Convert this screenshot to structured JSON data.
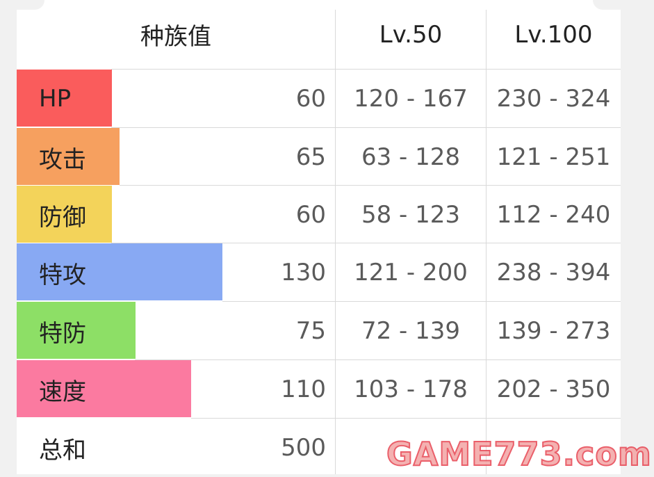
{
  "header": {
    "base_stat_label": "种族值",
    "lv50_label": "Lv.50",
    "lv100_label": "Lv.100"
  },
  "stats": [
    {
      "label": "HP",
      "base": "60",
      "lv50": "120 - 167",
      "lv100": "230 - 324",
      "color": "#fa5c5c",
      "value": 60
    },
    {
      "label": "攻击",
      "base": "65",
      "lv50": "63 - 128",
      "lv100": "121 - 251",
      "color": "#f6a05f",
      "value": 65
    },
    {
      "label": "防御",
      "base": "60",
      "lv50": "58 - 123",
      "lv100": "112 - 240",
      "color": "#f3d35a",
      "value": 60
    },
    {
      "label": "特攻",
      "base": "130",
      "lv50": "121 - 200",
      "lv100": "238 - 394",
      "color": "#88a9f3",
      "value": 130
    },
    {
      "label": "特防",
      "base": "75",
      "lv50": "72 - 139",
      "lv100": "139 - 273",
      "color": "#8ddf66",
      "value": 75
    },
    {
      "label": "速度",
      "base": "110",
      "lv50": "103 - 178",
      "lv100": "202 - 350",
      "color": "#fb7aa0",
      "value": 110
    }
  ],
  "total": {
    "label": "总和",
    "base": "500"
  },
  "watermark": "GAME773.com"
}
